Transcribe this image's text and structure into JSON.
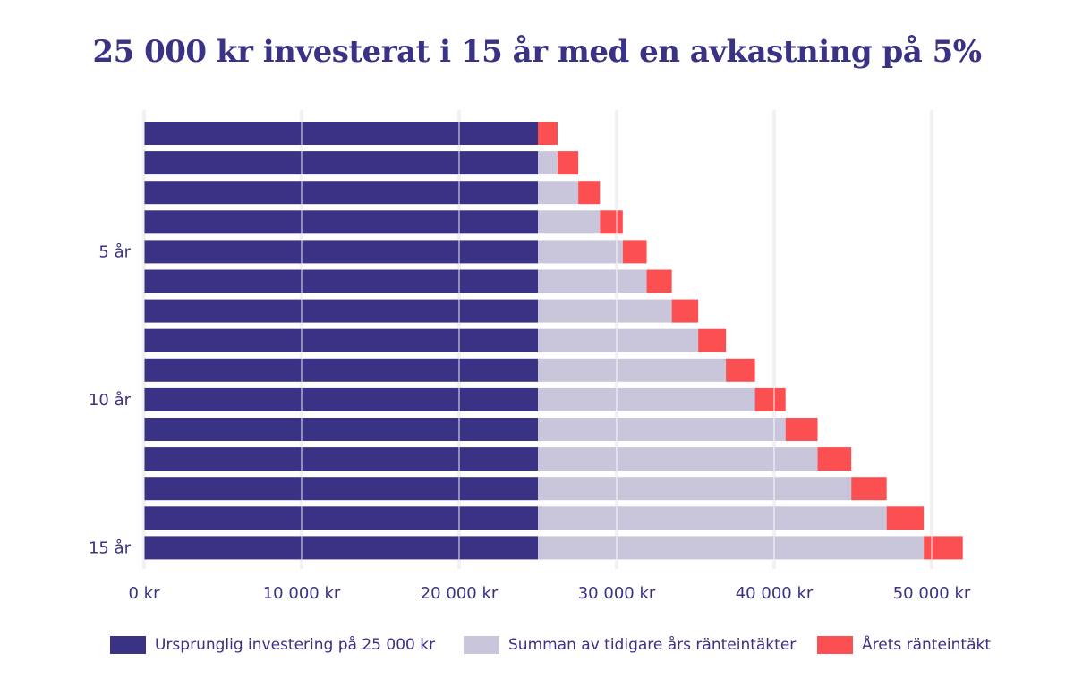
{
  "title": "25 000 kr investerat i 15 år med en avkastning på 5%",
  "colors": {
    "original": "#393285",
    "previous": "#c9c6dc",
    "current": "#fb4f51",
    "grid": "#e6e6e6",
    "text": "#393285"
  },
  "chart_data": {
    "type": "bar",
    "orientation": "horizontal",
    "stacked": true,
    "categories": [
      "1",
      "2",
      "3",
      "4",
      "5",
      "6",
      "7",
      "8",
      "9",
      "10",
      "11",
      "12",
      "13",
      "14",
      "15"
    ],
    "y_tick_labels": [
      {
        "category": "5",
        "label": "5 år"
      },
      {
        "category": "10",
        "label": "10 år"
      },
      {
        "category": "15",
        "label": "15 år"
      }
    ],
    "series": [
      {
        "name": "Ursprunglig investering på 25 000 kr",
        "color": "#393285",
        "values": [
          25000,
          25000,
          25000,
          25000,
          25000,
          25000,
          25000,
          25000,
          25000,
          25000,
          25000,
          25000,
          25000,
          25000,
          25000
        ]
      },
      {
        "name": "Summan av tidigare års ränteintäkter",
        "color": "#c9c6dc",
        "values": [
          0,
          1250,
          2563,
          3941,
          5388,
          6907,
          8502,
          10178,
          11936,
          13783,
          15722,
          17758,
          19896,
          22141,
          24498
        ]
      },
      {
        "name": "Årets ränteintäkt",
        "color": "#fb4f51",
        "values": [
          1250,
          1313,
          1378,
          1447,
          1519,
          1595,
          1675,
          1759,
          1847,
          1939,
          2036,
          2138,
          2245,
          2357,
          2475
        ]
      }
    ],
    "x_ticks": [
      {
        "value": 0,
        "label": "0 kr"
      },
      {
        "value": 10000,
        "label": "10 000 kr"
      },
      {
        "value": 20000,
        "label": "20 000 kr"
      },
      {
        "value": 30000,
        "label": "30 000 kr"
      },
      {
        "value": 40000,
        "label": "40 000 kr"
      },
      {
        "value": 50000,
        "label": "50 000 kr"
      }
    ],
    "xlim": [
      0,
      50000
    ],
    "xlabel": "",
    "ylabel": "",
    "grid": true,
    "legend_position": "bottom"
  },
  "legend": [
    {
      "label": "Ursprunglig investering på 25 000 kr",
      "color": "#393285"
    },
    {
      "label": "Summan av tidigare års ränteintäkter",
      "color": "#c9c6dc"
    },
    {
      "label": "Årets ränteintäkt",
      "color": "#fb4f51"
    }
  ]
}
